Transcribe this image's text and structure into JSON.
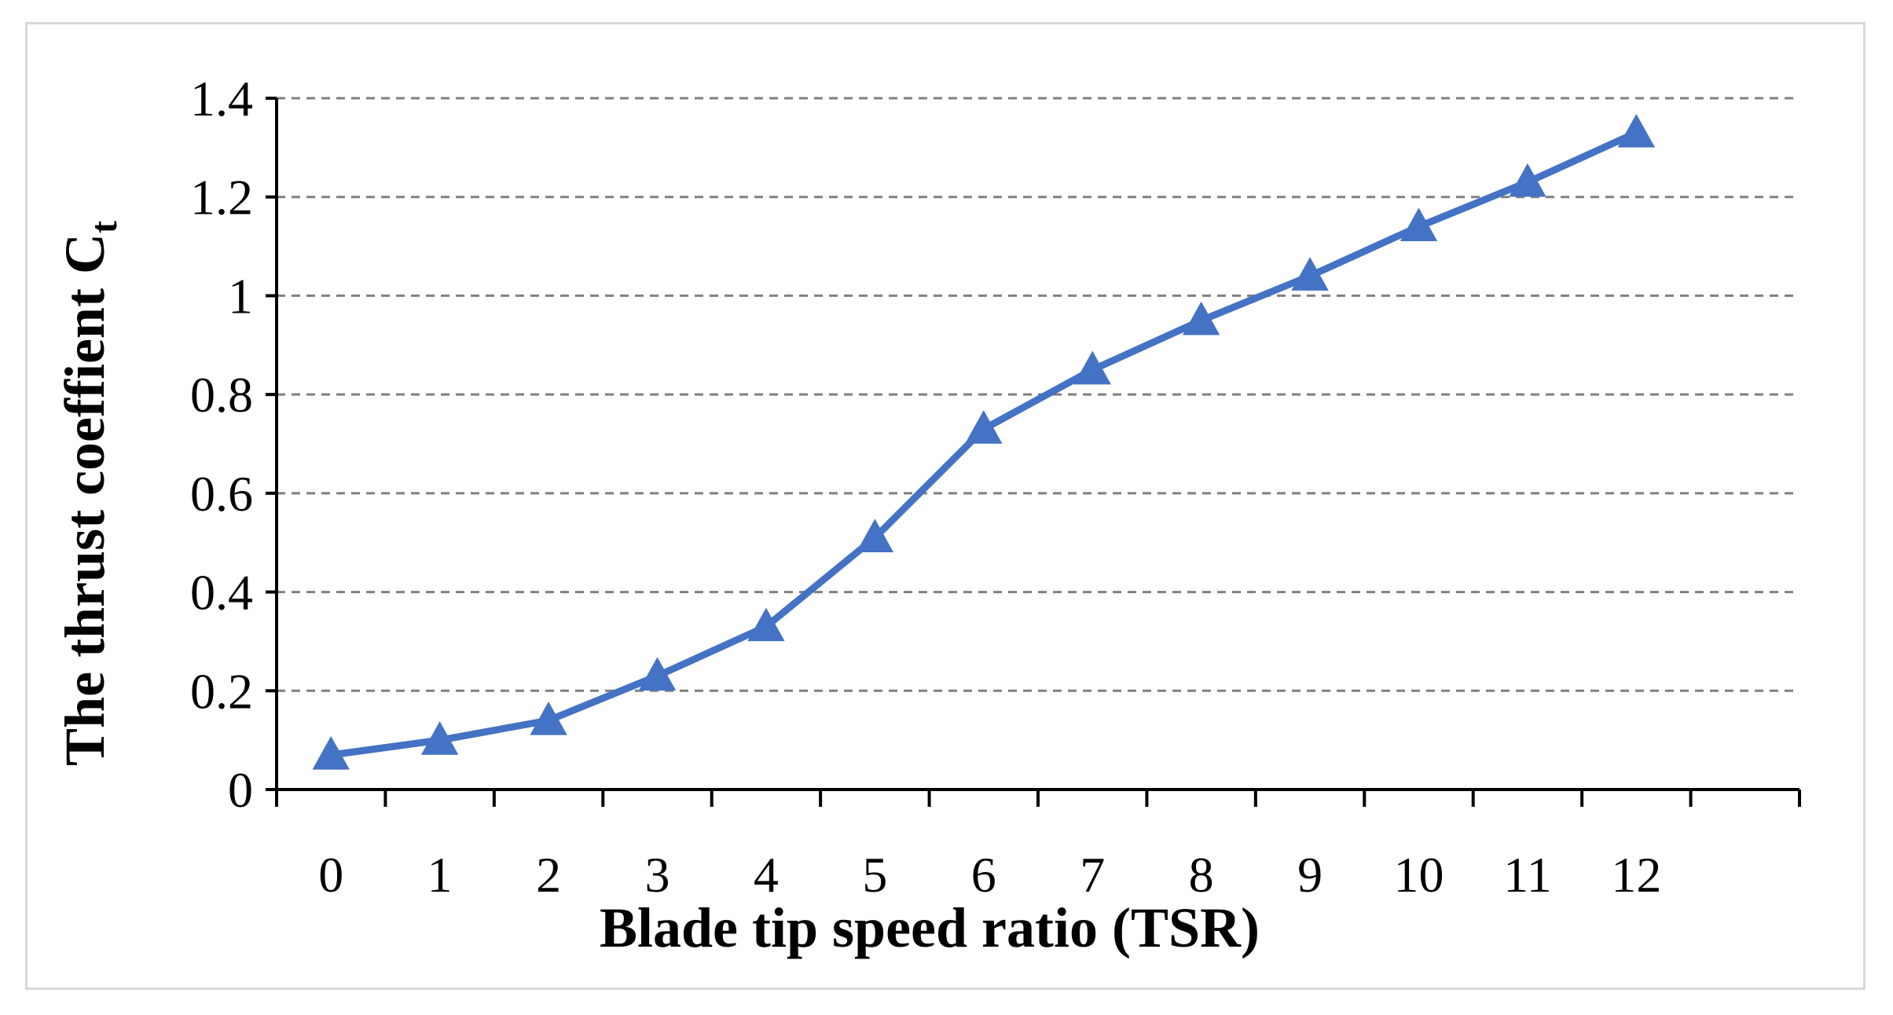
{
  "chart_data": {
    "type": "line",
    "x": [
      0,
      1,
      2,
      3,
      4,
      5,
      6,
      7,
      8,
      9,
      10,
      11,
      12
    ],
    "series": [
      {
        "values": [
          0.07,
          0.1,
          0.14,
          0.23,
          0.33,
          0.51,
          0.73,
          0.85,
          0.95,
          1.04,
          1.14,
          1.23,
          1.33
        ],
        "color": "#4472c4",
        "marker": "triangle"
      }
    ],
    "xlabel": "Blade tip speed ratio (TSR)",
    "ylabel_main": "The thrust coeffient C",
    "ylabel_subscript": "t",
    "ylim": [
      0,
      1.4
    ],
    "y_ticks": [
      "0",
      "0.2",
      "0.4",
      "0.6",
      "0.8",
      "1",
      "1.2",
      "1.4"
    ],
    "x_ticks": [
      "0",
      "1",
      "2",
      "3",
      "4",
      "5",
      "6",
      "7",
      "8",
      "9",
      "10",
      "11",
      "12"
    ],
    "grid": "horizontal dashed",
    "grid_color": "#808080",
    "axis_color": "#000000",
    "legend": "none"
  }
}
